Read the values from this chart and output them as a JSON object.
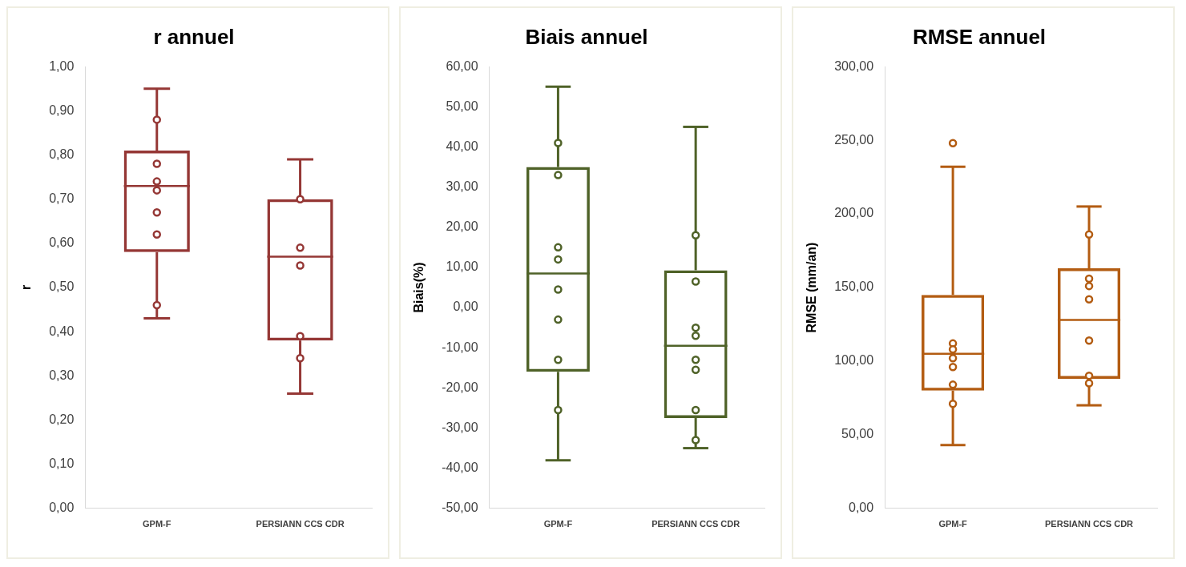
{
  "chart_data": [
    {
      "type": "box",
      "title": "r annuel",
      "ylabel": "r",
      "categories": [
        "GPM-F",
        "PERSIANN CCS CDR"
      ],
      "ylim": [
        0,
        1
      ],
      "yticks": [
        {
          "value": 0,
          "label": "0,00"
        },
        {
          "value": 0.1,
          "label": "0,10"
        },
        {
          "value": 0.2,
          "label": "0,20"
        },
        {
          "value": 0.3,
          "label": "0,30"
        },
        {
          "value": 0.4,
          "label": "0,40"
        },
        {
          "value": 0.5,
          "label": "0,50"
        },
        {
          "value": 0.6,
          "label": "0,60"
        },
        {
          "value": 0.7,
          "label": "0,70"
        },
        {
          "value": 0.8,
          "label": "0,80"
        },
        {
          "value": 0.9,
          "label": "0,90"
        },
        {
          "value": 1,
          "label": "1,00"
        }
      ],
      "marker": "circle",
      "series": [
        {
          "color": "#953735",
          "boxes": [
            {
              "low": 0.43,
              "q1": 0.58,
              "median": 0.73,
              "q3": 0.81,
              "high": 0.95
            },
            {
              "low": 0.26,
              "q1": 0.38,
              "median": 0.57,
              "q3": 0.7,
              "high": 0.79
            }
          ]
        },
        {
          "type": "scatter",
          "color": "#953735",
          "x": [
            "GPM-F",
            "GPM-F",
            "GPM-F",
            "GPM-F",
            "GPM-F",
            "GPM-F",
            "GPM-F",
            "PERSIANN CCS CDR",
            "PERSIANN CCS CDR",
            "PERSIANN CCS CDR",
            "PERSIANN CCS CDR",
            "PERSIANN CCS CDR"
          ],
          "values": [
            0.88,
            0.78,
            0.74,
            0.72,
            0.67,
            0.62,
            0.46,
            0.7,
            0.59,
            0.55,
            0.39,
            0.34
          ]
        }
      ]
    },
    {
      "type": "box",
      "title": "Biais annuel",
      "ylabel": "Biais(%)",
      "categories": [
        "GPM-F",
        "PERSIANN CCS CDR"
      ],
      "ylim": [
        -50,
        60
      ],
      "yticks": [
        {
          "value": -50,
          "label": "-50,00"
        },
        {
          "value": -40,
          "label": "-40,00"
        },
        {
          "value": -30,
          "label": "-30,00"
        },
        {
          "value": -20,
          "label": "-20,00"
        },
        {
          "value": -10,
          "label": "-10,00"
        },
        {
          "value": 0,
          "label": "0,00"
        },
        {
          "value": 10,
          "label": "10,00"
        },
        {
          "value": 20,
          "label": "20,00"
        },
        {
          "value": 30,
          "label": "30,00"
        },
        {
          "value": 40,
          "label": "40,00"
        },
        {
          "value": 50,
          "label": "50,00"
        },
        {
          "value": 60,
          "label": "60,00"
        }
      ],
      "marker": "circle",
      "series": [
        {
          "color": "#4f6228",
          "boxes": [
            {
              "low": -38,
              "q1": -16,
              "median": 8.5,
              "q3": 35,
              "high": 55
            },
            {
              "low": -35,
              "q1": -27.5,
              "median": -9.5,
              "q3": 9.3,
              "high": 45
            }
          ]
        },
        {
          "type": "scatter",
          "color": "#4f6228",
          "x": [
            "GPM-F",
            "GPM-F",
            "GPM-F",
            "GPM-F",
            "GPM-F",
            "GPM-F",
            "GPM-F",
            "GPM-F",
            "PERSIANN CCS CDR",
            "PERSIANN CCS CDR",
            "PERSIANN CCS CDR",
            "PERSIANN CCS CDR",
            "PERSIANN CCS CDR",
            "PERSIANN CCS CDR",
            "PERSIANN CCS CDR",
            "PERSIANN CCS CDR"
          ],
          "values": [
            41,
            33,
            15,
            12,
            4.5,
            -3,
            -13,
            -25.5,
            18,
            6.5,
            -5,
            -7,
            -13,
            -15.5,
            -25.5,
            -33
          ]
        }
      ]
    },
    {
      "type": "box",
      "title": "RMSE annuel",
      "ylabel": "RMSE (mm/an)",
      "categories": [
        "GPM-F",
        "PERSIANN CCS CDR"
      ],
      "ylim": [
        0,
        300
      ],
      "yticks": [
        {
          "value": 0,
          "label": "0,00"
        },
        {
          "value": 50,
          "label": "50,00"
        },
        {
          "value": 100,
          "label": "100,00"
        },
        {
          "value": 150,
          "label": "150,00"
        },
        {
          "value": 200,
          "label": "200,00"
        },
        {
          "value": 250,
          "label": "250,00"
        },
        {
          "value": 300,
          "label": "300,00"
        }
      ],
      "marker": "circle",
      "series": [
        {
          "color": "#b35c12",
          "boxes": [
            {
              "low": 43,
              "q1": 80,
              "median": 105,
              "q3": 145,
              "high": 232,
              "outliers": [
                248
              ]
            },
            {
              "low": 70,
              "q1": 88,
              "median": 128,
              "q3": 163,
              "high": 205
            }
          ]
        },
        {
          "type": "scatter",
          "color": "#b35c12",
          "x": [
            "GPM-F",
            "GPM-F",
            "GPM-F",
            "GPM-F",
            "GPM-F",
            "GPM-F",
            "PERSIANN CCS CDR",
            "PERSIANN CCS CDR",
            "PERSIANN CCS CDR",
            "PERSIANN CCS CDR",
            "PERSIANN CCS CDR",
            "PERSIANN CCS CDR",
            "PERSIANN CCS CDR"
          ],
          "values": [
            112,
            108,
            102,
            96,
            84,
            71,
            186,
            156,
            151,
            142,
            114,
            90,
            85
          ]
        }
      ]
    }
  ]
}
